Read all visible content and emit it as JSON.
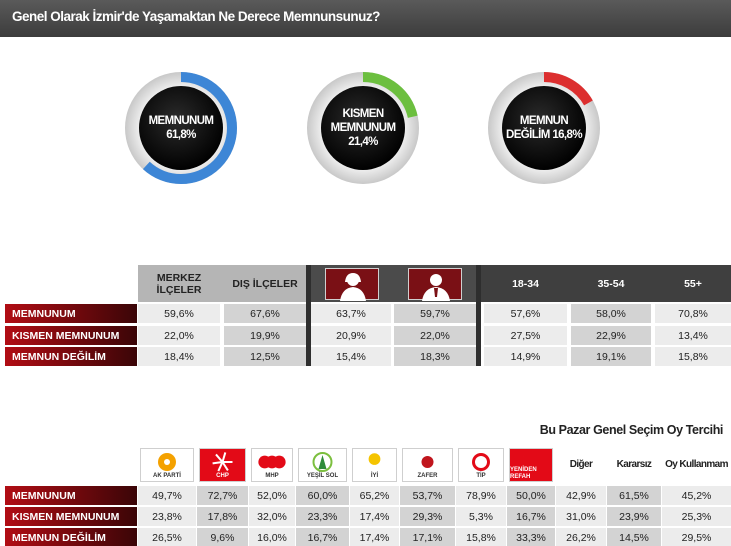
{
  "title": "Genel Olarak İzmir'de Yaşamaktan Ne Derece Memnunsunuz?",
  "donuts": [
    {
      "line1": "MEMNUNUM",
      "line2": "61,8%",
      "value": 61.8,
      "color": "#3d86d6"
    },
    {
      "line1": "KISMEN MEMNUNUM",
      "line2": "21,4%",
      "value": 21.4,
      "color": "#6cbf3f"
    },
    {
      "line1": "MEMNUN",
      "line2": "DEĞİLİM 16,8%",
      "value": 16.8,
      "color": "#dc2f2f"
    }
  ],
  "row_labels": [
    "MEMNUNUM",
    "KISMEN MEMNUNUM",
    "MEMNUN DEĞİLİM"
  ],
  "table1": {
    "headers": [
      "MERKEZ İLÇELER",
      "DIŞ İLÇELER",
      "",
      "",
      "18-34",
      "35-54",
      "55+"
    ],
    "gender_icons": [
      "female-icon",
      "male-icon"
    ],
    "rows": [
      [
        "59,6%",
        "67,6%",
        "63,7%",
        "59,7%",
        "57,6%",
        "58,0%",
        "70,8%"
      ],
      [
        "22,0%",
        "19,9%",
        "20,9%",
        "22,0%",
        "27,5%",
        "22,9%",
        "13,4%"
      ],
      [
        "18,4%",
        "12,5%",
        "15,4%",
        "18,3%",
        "14,9%",
        "19,1%",
        "15,8%"
      ]
    ]
  },
  "table2": {
    "caption": "Bu Pazar Genel Seçim Oy Tercihi",
    "party_logos": [
      {
        "icon": "akp-logo-icon",
        "text": "AK PARTİ"
      },
      {
        "icon": "chp-logo-icon",
        "text": "CHP"
      },
      {
        "icon": "mhp-logo-icon",
        "text": "MHP"
      },
      {
        "icon": "yesil-sol-logo-icon",
        "text": "YEŞİL SOL"
      },
      {
        "icon": "iyi-logo-icon",
        "text": "İYİ"
      },
      {
        "icon": "zafer-logo-icon",
        "text": "ZAFER"
      },
      {
        "icon": "tip-logo-icon",
        "text": "TİP"
      },
      {
        "icon": "yeniden-refah-logo-icon",
        "text": "YENİDEN REFAH"
      }
    ],
    "text_headers": [
      "Diğer",
      "Kararsız",
      "Oy Kullanmam"
    ],
    "rows": [
      [
        "49,7%",
        "72,7%",
        "52,0%",
        "60,0%",
        "65,2%",
        "53,7%",
        "78,9%",
        "50,0%",
        "42,9%",
        "61,5%",
        "45,2%"
      ],
      [
        "23,8%",
        "17,8%",
        "32,0%",
        "23,3%",
        "17,4%",
        "29,3%",
        "5,3%",
        "16,7%",
        "31,0%",
        "23,9%",
        "25,3%"
      ],
      [
        "26,5%",
        "9,6%",
        "16,0%",
        "16,7%",
        "17,4%",
        "17,1%",
        "15,8%",
        "33,3%",
        "26,2%",
        "14,5%",
        "29,5%"
      ]
    ]
  },
  "chart_data": [
    {
      "type": "pie",
      "categories": [
        "MEMNUNUM",
        "KISMEN MEMNUNUM",
        "MEMNUN DEĞİLİM"
      ],
      "values": [
        61.8,
        21.4,
        16.8
      ]
    },
    {
      "type": "table",
      "columns": [
        "MERKEZ İLÇELER",
        "DIŞ İLÇELER",
        "Kadın",
        "Erkek",
        "18-34",
        "35-54",
        "55+"
      ],
      "rows": [
        "MEMNUNUM",
        "KISMEN MEMNUNUM",
        "MEMNUN DEĞİLİM"
      ],
      "values": [
        [
          59.6,
          67.6,
          63.7,
          59.7,
          57.6,
          58.0,
          70.8
        ],
        [
          22.0,
          19.9,
          20.9,
          22.0,
          27.5,
          22.9,
          13.4
        ],
        [
          18.4,
          12.5,
          15.4,
          18.3,
          14.9,
          19.1,
          15.8
        ]
      ]
    },
    {
      "type": "table",
      "title": "Bu Pazar Genel Seçim Oy Tercihi",
      "columns": [
        "AK PARTİ",
        "CHP",
        "MHP",
        "YEŞİL SOL",
        "İYİ",
        "ZAFER",
        "TİP",
        "YENİDEN REFAH",
        "Diğer",
        "Kararsız",
        "Oy Kullanmam"
      ],
      "rows": [
        "MEMNUNUM",
        "KISMEN MEMNUNUM",
        "MEMNUN DEĞİLİM"
      ],
      "values": [
        [
          49.7,
          72.7,
          52.0,
          60.0,
          65.2,
          53.7,
          78.9,
          50.0,
          42.9,
          61.5,
          45.2
        ],
        [
          23.8,
          17.8,
          32.0,
          23.3,
          17.4,
          29.3,
          5.3,
          16.7,
          31.0,
          23.9,
          25.3
        ],
        [
          26.5,
          9.6,
          16.0,
          16.7,
          17.4,
          17.1,
          15.8,
          33.3,
          26.2,
          14.5,
          29.5
        ]
      ]
    }
  ]
}
